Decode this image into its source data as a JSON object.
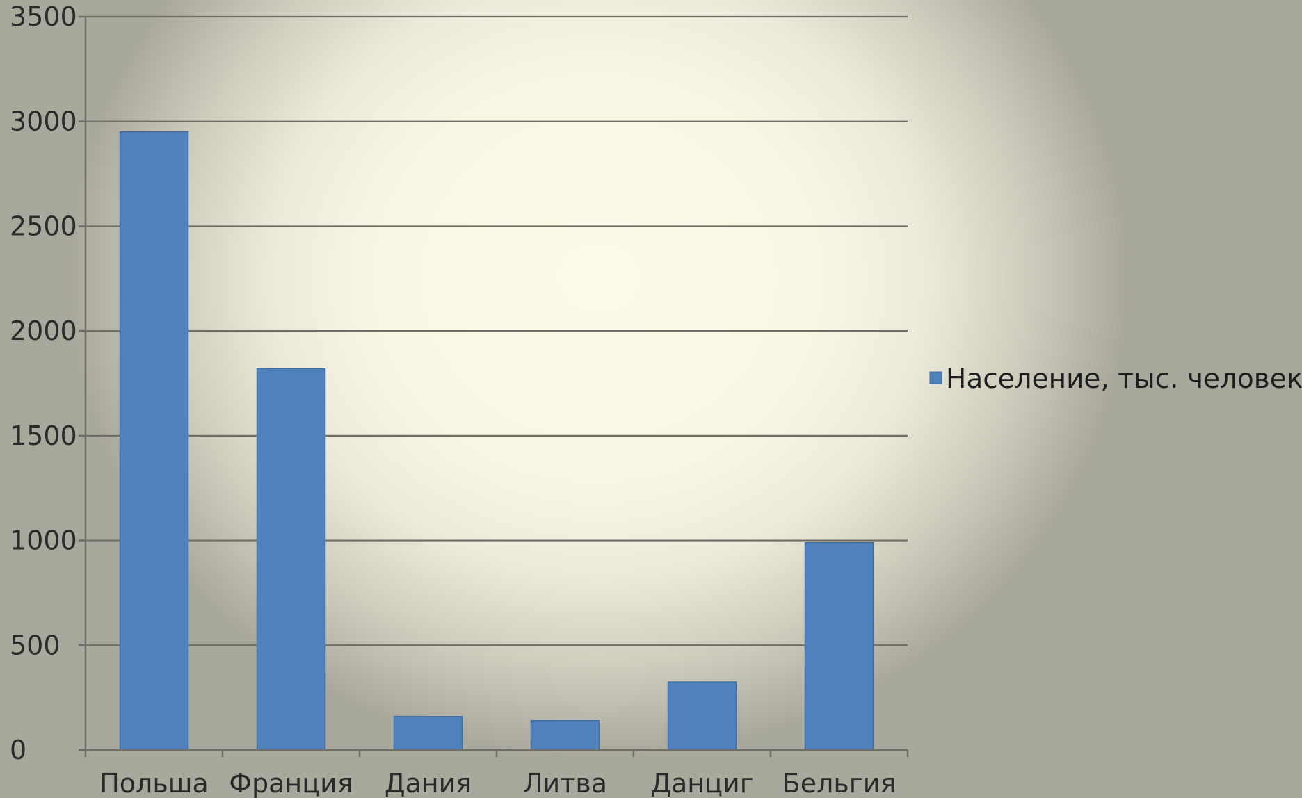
{
  "chart_data": {
    "type": "bar",
    "categories": [
      "Польша",
      "Франция",
      "Дания",
      "Литва",
      "Данциг",
      "Бельгия"
    ],
    "series": [
      {
        "name": "Население, тыс. человек",
        "values": [
          2950,
          1820,
          160,
          140,
          325,
          990
        ],
        "color": "#4f81bd"
      }
    ],
    "ylim": [
      0,
      3500
    ],
    "yticks": [
      0,
      500,
      1000,
      1500,
      2000,
      2500,
      3000,
      3500
    ],
    "grid": true,
    "legend_position": "right"
  }
}
